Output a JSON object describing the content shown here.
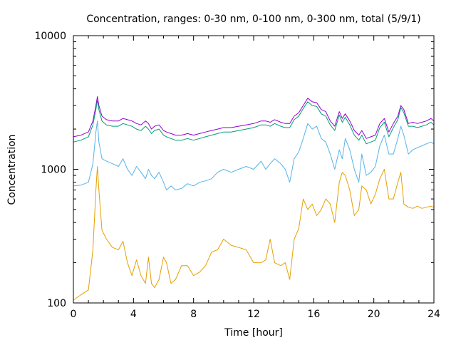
{
  "chart_data": {
    "type": "line",
    "title": "Concentration, ranges: 0-30 nm, 0-100 nm, 0-300 nm, total (5/9/1)",
    "xlabel": "Time [hour]",
    "ylabel": "Concentration",
    "xlim": [
      0,
      24
    ],
    "ylim": [
      100,
      10000
    ],
    "yscale": "log",
    "x_ticks": [
      0,
      4,
      8,
      12,
      16,
      20,
      24
    ],
    "x_tick_labels": [
      "0",
      "4",
      "8",
      "12",
      "16",
      "20",
      "24"
    ],
    "y_major_ticks": [
      100,
      1000,
      10000
    ],
    "y_tick_labels": [
      "100",
      "1000",
      "10000"
    ],
    "grid": false,
    "legend": "none",
    "x": [
      0,
      0.5,
      1,
      1.3,
      1.5,
      1.6,
      1.7,
      1.9,
      2.2,
      2.6,
      3,
      3.3,
      3.6,
      3.9,
      4.2,
      4.5,
      4.8,
      5.0,
      5.2,
      5.4,
      5.7,
      6.0,
      6.2,
      6.5,
      6.8,
      7.2,
      7.6,
      8.0,
      8.4,
      8.8,
      9.2,
      9.6,
      10.0,
      10.5,
      11.0,
      11.5,
      12.0,
      12.5,
      12.8,
      13.1,
      13.4,
      13.8,
      14.1,
      14.4,
      14.7,
      15.0,
      15.3,
      15.6,
      15.9,
      16.2,
      16.5,
      16.8,
      17.1,
      17.4,
      17.7,
      17.9,
      18.1,
      18.4,
      18.7,
      19.0,
      19.2,
      19.5,
      19.8,
      20.1,
      20.4,
      20.7,
      21.0,
      21.3,
      21.6,
      21.8,
      22.0,
      22.3,
      22.6,
      22.9,
      23.2,
      23.5,
      23.8,
      24.0
    ],
    "series": [
      {
        "color": "#9400d3",
        "values": [
          1750,
          1800,
          1900,
          2300,
          3000,
          3500,
          3000,
          2500,
          2350,
          2300,
          2300,
          2400,
          2350,
          2300,
          2200,
          2150,
          2300,
          2200,
          2000,
          2100,
          2150,
          1950,
          1900,
          1850,
          1800,
          1800,
          1850,
          1800,
          1850,
          1900,
          1950,
          2000,
          2050,
          2050,
          2100,
          2150,
          2200,
          2300,
          2300,
          2250,
          2350,
          2250,
          2200,
          2200,
          2500,
          2650,
          3000,
          3400,
          3200,
          3150,
          2800,
          2700,
          2300,
          2100,
          2700,
          2400,
          2600,
          2300,
          1950,
          1800,
          1950,
          1700,
          1750,
          1800,
          2200,
          2400,
          1900,
          2200,
          2500,
          3000,
          2800,
          2200,
          2250,
          2200,
          2250,
          2300,
          2400,
          2300
        ]
      },
      {
        "color": "#009e73",
        "values": [
          1600,
          1650,
          1750,
          2150,
          2800,
          3300,
          2800,
          2300,
          2150,
          2100,
          2100,
          2200,
          2150,
          2100,
          2000,
          1950,
          2100,
          2000,
          1850,
          1950,
          2000,
          1800,
          1750,
          1700,
          1650,
          1650,
          1700,
          1650,
          1700,
          1750,
          1800,
          1850,
          1900,
          1900,
          1950,
          2000,
          2050,
          2150,
          2150,
          2100,
          2200,
          2100,
          2050,
          2050,
          2350,
          2500,
          2850,
          3200,
          3000,
          2950,
          2600,
          2500,
          2150,
          1950,
          2550,
          2250,
          2450,
          2150,
          1800,
          1650,
          1800,
          1550,
          1600,
          1650,
          2050,
          2250,
          1750,
          2050,
          2350,
          2900,
          2650,
          2100,
          2100,
          2050,
          2100,
          2150,
          2250,
          2150
        ]
      },
      {
        "color": "#56b4e9",
        "values": [
          750,
          760,
          800,
          1100,
          1900,
          2300,
          1600,
          1200,
          1150,
          1100,
          1050,
          1200,
          1000,
          900,
          1050,
          950,
          850,
          1000,
          900,
          850,
          950,
          800,
          700,
          750,
          700,
          720,
          780,
          750,
          800,
          820,
          850,
          950,
          1000,
          950,
          1000,
          1050,
          1000,
          1150,
          1000,
          1100,
          1200,
          1100,
          1000,
          800,
          1200,
          1350,
          1700,
          2200,
          2000,
          2100,
          1700,
          1600,
          1300,
          1000,
          1400,
          1200,
          1700,
          1400,
          1000,
          800,
          1300,
          900,
          950,
          1050,
          1500,
          1800,
          1300,
          1300,
          1700,
          2100,
          1800,
          1300,
          1400,
          1450,
          1500,
          1550,
          1600,
          1550
        ]
      },
      {
        "color": "#e69f00",
        "values": [
          105,
          115,
          125,
          250,
          700,
          1050,
          700,
          350,
          300,
          260,
          250,
          290,
          200,
          160,
          210,
          160,
          140,
          220,
          140,
          130,
          150,
          220,
          200,
          140,
          150,
          190,
          190,
          160,
          170,
          190,
          240,
          250,
          300,
          270,
          260,
          250,
          200,
          200,
          210,
          300,
          200,
          190,
          200,
          150,
          300,
          360,
          600,
          500,
          550,
          450,
          500,
          600,
          550,
          400,
          800,
          950,
          900,
          700,
          450,
          500,
          750,
          700,
          550,
          650,
          850,
          1000,
          600,
          600,
          800,
          950,
          550,
          520,
          510,
          530,
          510,
          520,
          530,
          520
        ]
      }
    ]
  }
}
